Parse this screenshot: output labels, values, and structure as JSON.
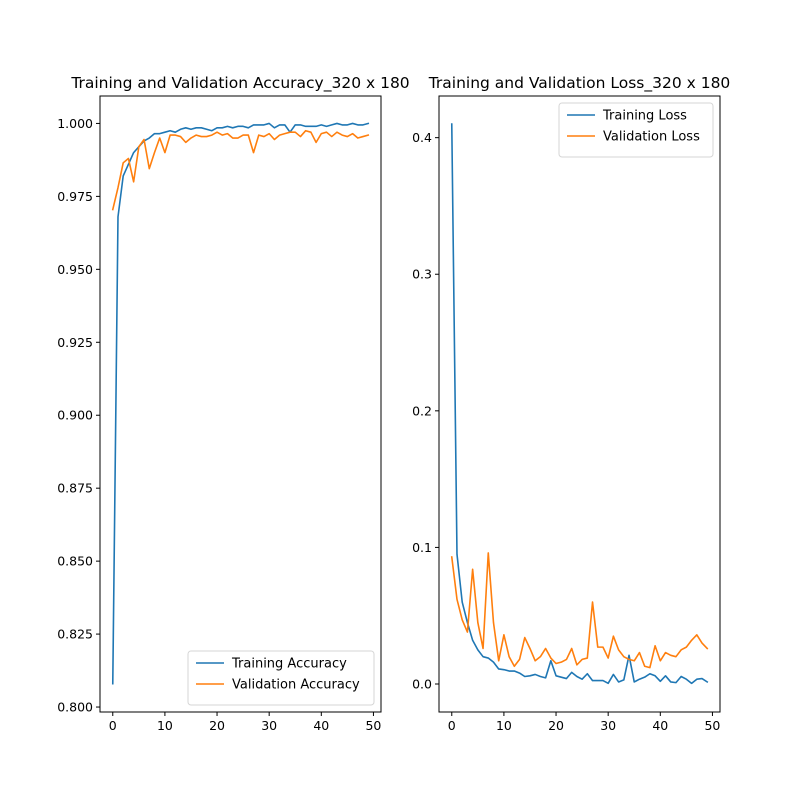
{
  "chart_data": [
    {
      "type": "line",
      "title": "Training and Validation Accuracy_320 x 180",
      "xlabel": "",
      "ylabel": "",
      "xlim": [
        -2.45,
        51.45
      ],
      "ylim": [
        0.7983,
        1.0094
      ],
      "xticks": [
        0,
        10,
        20,
        30,
        40,
        50
      ],
      "yticks": [
        0.8,
        0.825,
        0.85,
        0.875,
        0.9,
        0.925,
        0.95,
        0.975,
        1.0
      ],
      "ytick_labels": [
        "0.800",
        "0.825",
        "0.850",
        "0.875",
        "0.900",
        "0.925",
        "0.950",
        "0.975",
        "1.000"
      ],
      "legend": "lower-right",
      "grid": false,
      "series": [
        {
          "name": "Training Accuracy",
          "color": "#1f77b4",
          "values": [
            0.808,
            0.968,
            0.982,
            0.986,
            0.99,
            0.992,
            0.994,
            0.995,
            0.9965,
            0.9965,
            0.997,
            0.9975,
            0.997,
            0.998,
            0.9985,
            0.998,
            0.9985,
            0.9985,
            0.998,
            0.9975,
            0.9985,
            0.9985,
            0.999,
            0.9985,
            0.999,
            0.999,
            0.9985,
            0.9995,
            0.9995,
            0.9995,
            1.0,
            0.9985,
            0.9995,
            0.9995,
            0.997,
            0.9995,
            0.9995,
            0.999,
            0.999,
            0.999,
            0.9995,
            0.999,
            0.9995,
            1.0,
            0.9995,
            0.9995,
            1.0,
            0.9995,
            0.9995,
            1.0
          ]
        },
        {
          "name": "Validation Accuracy",
          "color": "#ff7f0e",
          "values": [
            0.9705,
            0.978,
            0.9865,
            0.988,
            0.98,
            0.992,
            0.9945,
            0.9845,
            0.99,
            0.995,
            0.99,
            0.996,
            0.996,
            0.9955,
            0.9935,
            0.995,
            0.996,
            0.9955,
            0.9955,
            0.996,
            0.997,
            0.996,
            0.9965,
            0.995,
            0.995,
            0.996,
            0.996,
            0.99,
            0.996,
            0.9955,
            0.9965,
            0.9945,
            0.996,
            0.9965,
            0.997,
            0.997,
            0.9955,
            0.9975,
            0.997,
            0.9935,
            0.9965,
            0.997,
            0.9955,
            0.997,
            0.996,
            0.9955,
            0.9965,
            0.995,
            0.9955,
            0.996
          ]
        }
      ]
    },
    {
      "type": "line",
      "title": "Training and Validation Loss_320 x 180",
      "xlabel": "",
      "ylabel": "",
      "xlim": [
        -2.45,
        51.45
      ],
      "ylim": [
        -0.0205,
        0.4305
      ],
      "xticks": [
        0,
        10,
        20,
        30,
        40,
        50
      ],
      "yticks": [
        0.0,
        0.1,
        0.2,
        0.3,
        0.4
      ],
      "ytick_labels": [
        "0.0",
        "0.1",
        "0.2",
        "0.3",
        "0.4"
      ],
      "legend": "upper-right",
      "grid": false,
      "series": [
        {
          "name": "Training Loss",
          "color": "#1f77b4",
          "values": [
            0.41,
            0.095,
            0.06,
            0.045,
            0.032,
            0.025,
            0.02,
            0.019,
            0.016,
            0.011,
            0.0105,
            0.0095,
            0.0095,
            0.008,
            0.0055,
            0.006,
            0.007,
            0.0055,
            0.0045,
            0.017,
            0.006,
            0.005,
            0.004,
            0.0085,
            0.0055,
            0.0035,
            0.0075,
            0.0025,
            0.0025,
            0.0025,
            0.0005,
            0.007,
            0.0015,
            0.003,
            0.021,
            0.0015,
            0.0035,
            0.005,
            0.0075,
            0.006,
            0.002,
            0.006,
            0.0015,
            0.001,
            0.0055,
            0.0035,
            0.0005,
            0.0035,
            0.004,
            0.0015
          ]
        },
        {
          "name": "Validation Loss",
          "color": "#ff7f0e",
          "values": [
            0.093,
            0.062,
            0.047,
            0.038,
            0.084,
            0.045,
            0.026,
            0.096,
            0.045,
            0.017,
            0.036,
            0.02,
            0.013,
            0.018,
            0.034,
            0.026,
            0.017,
            0.02,
            0.026,
            0.019,
            0.015,
            0.016,
            0.018,
            0.026,
            0.014,
            0.018,
            0.019,
            0.06,
            0.027,
            0.027,
            0.019,
            0.035,
            0.025,
            0.02,
            0.018,
            0.017,
            0.023,
            0.013,
            0.012,
            0.028,
            0.017,
            0.023,
            0.021,
            0.02,
            0.025,
            0.027,
            0.032,
            0.036,
            0.03,
            0.026
          ]
        }
      ]
    }
  ]
}
